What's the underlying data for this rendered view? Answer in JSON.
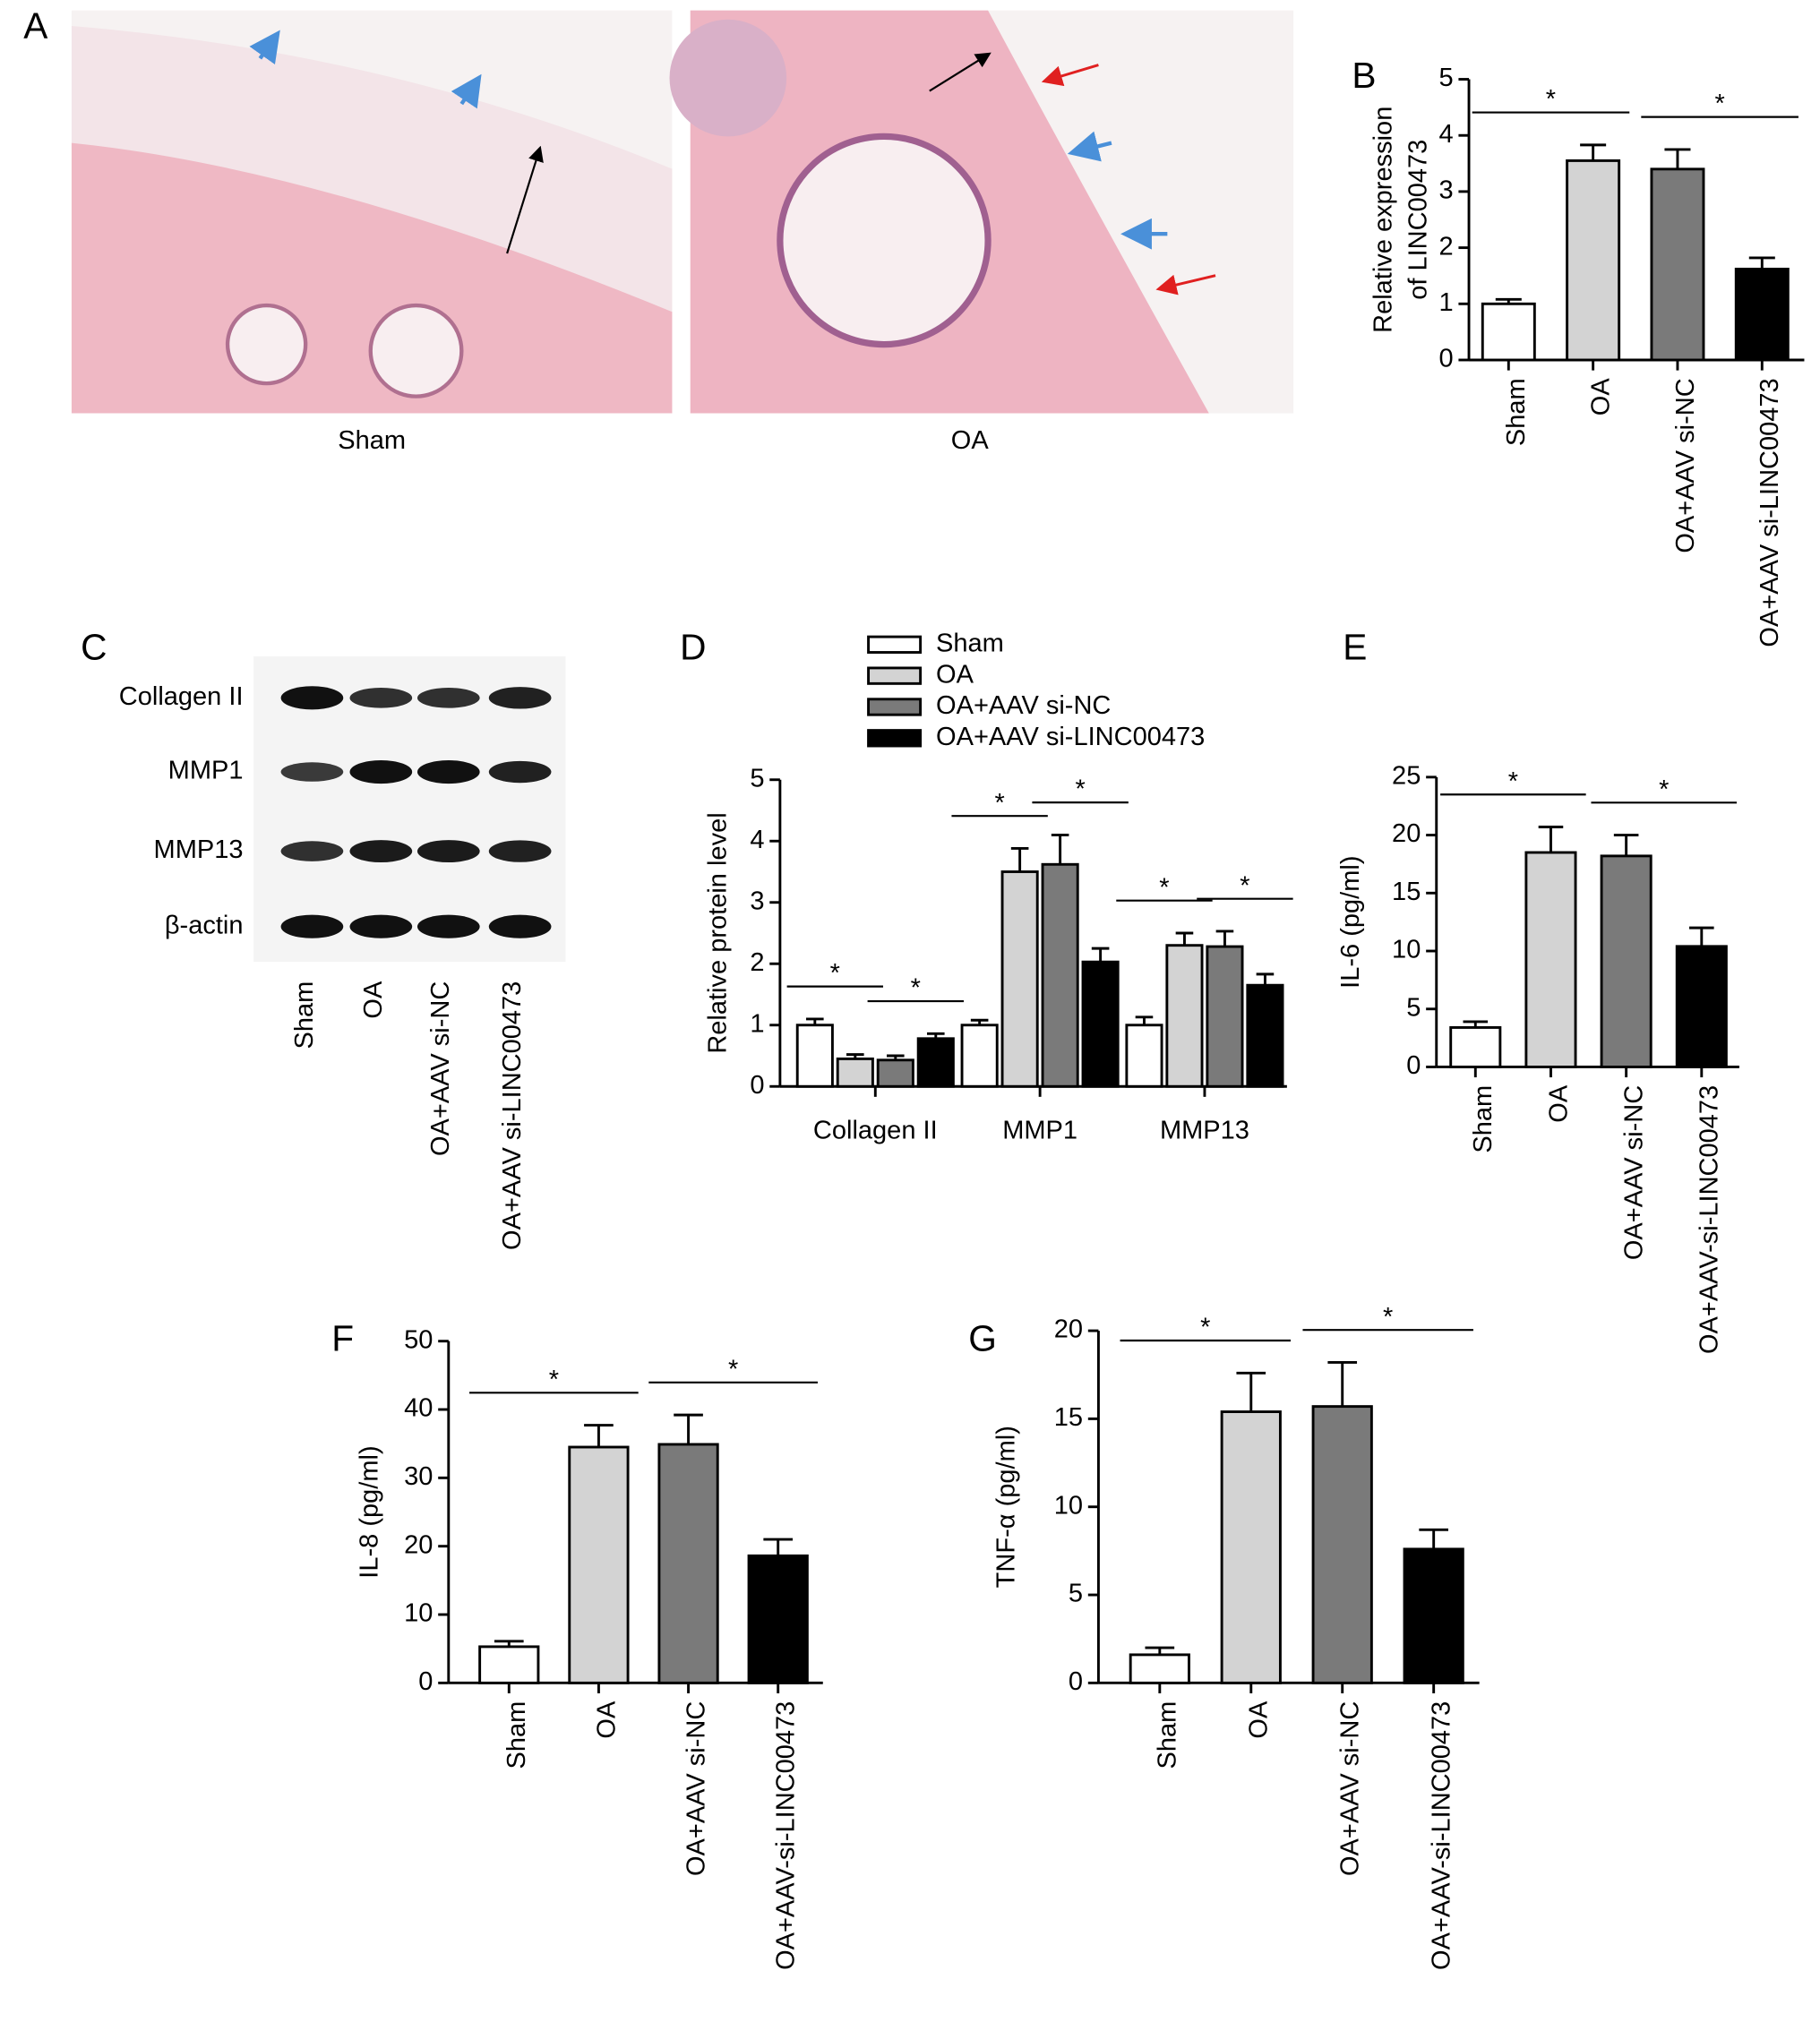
{
  "panel_a": {
    "panel": "A",
    "images": [
      "Sham",
      "OA"
    ]
  },
  "panel_c": {
    "panel": "C",
    "rows": [
      "Collagen II",
      "MMP1",
      "MMP13",
      "β-actin"
    ],
    "lanes": [
      "Sham",
      "OA",
      "OA+AAV si-NC",
      "OA+AAV si-LINC00473"
    ]
  },
  "chart_data": [
    {
      "type": "bar",
      "panel": "B",
      "ylabel": [
        "Relative expression",
        "of LINC00473"
      ],
      "categories": [
        "Sham",
        "OA",
        "OA+AAV si-NC",
        "OA+AAV si-LINC00473"
      ],
      "values": [
        1.0,
        3.55,
        3.4,
        1.62
      ],
      "errors": [
        0.08,
        0.28,
        0.35,
        0.2
      ],
      "colors": [
        "#ffffff",
        "#d3d3d3",
        "#7a7a7a",
        "#000000"
      ],
      "ylim": [
        0,
        5
      ],
      "yticks": [
        0,
        1,
        2,
        3,
        4,
        5
      ],
      "significance": [
        {
          "label": "*",
          "pair": [
            "Sham",
            "OA"
          ]
        },
        {
          "label": "*",
          "pair": [
            "OA+AAV si-NC",
            "OA+AAV si-LINC00473"
          ]
        }
      ]
    },
    {
      "type": "grouped-bar",
      "panel": "D",
      "ylabel": [
        "Relative protein level"
      ],
      "categories": [
        "Collagen II",
        "MMP1",
        "MMP13"
      ],
      "series": [
        {
          "name": "Sham",
          "color": "#ffffff",
          "values": [
            1.0,
            1.0,
            1.0
          ],
          "errors": [
            0.1,
            0.08,
            0.13
          ]
        },
        {
          "name": "OA",
          "color": "#d3d3d3",
          "values": [
            0.45,
            3.5,
            2.3
          ],
          "errors": [
            0.07,
            0.38,
            0.2
          ]
        },
        {
          "name": "OA+AAV si-NC",
          "color": "#7a7a7a",
          "values": [
            0.43,
            3.62,
            2.28
          ],
          "errors": [
            0.07,
            0.48,
            0.25
          ]
        },
        {
          "name": "OA+AAV si-LINC00473",
          "color": "#000000",
          "values": [
            0.78,
            2.03,
            1.65
          ],
          "errors": [
            0.08,
            0.22,
            0.18
          ]
        }
      ],
      "ylim": [
        0,
        5
      ],
      "yticks": [
        0,
        1,
        2,
        3,
        4,
        5
      ],
      "significance": [
        {
          "label": "*",
          "category": "Collagen II",
          "pair": [
            "Sham",
            "OA"
          ]
        },
        {
          "label": "*",
          "category": "Collagen II",
          "pair": [
            "OA+AAV si-NC",
            "OA+AAV si-LINC00473"
          ]
        },
        {
          "label": "*",
          "category": "MMP1",
          "pair": [
            "Sham",
            "OA"
          ]
        },
        {
          "label": "*",
          "category": "MMP1",
          "pair": [
            "OA+AAV si-NC",
            "OA+AAV si-LINC00473"
          ]
        },
        {
          "label": "*",
          "category": "MMP13",
          "pair": [
            "Sham",
            "OA"
          ]
        },
        {
          "label": "*",
          "category": "MMP13",
          "pair": [
            "OA+AAV si-NC",
            "OA+AAV si-LINC00473"
          ]
        }
      ]
    },
    {
      "type": "bar",
      "panel": "E",
      "ylabel": [
        "IL-6 (pg/ml)"
      ],
      "categories": [
        "Sham",
        "OA",
        "OA+AAV si-NC",
        "OA+AAV-si-LINC00473"
      ],
      "values": [
        3.4,
        18.5,
        18.2,
        10.4
      ],
      "errors": [
        0.5,
        2.2,
        1.8,
        1.6
      ],
      "colors": [
        "#ffffff",
        "#d3d3d3",
        "#7a7a7a",
        "#000000"
      ],
      "ylim": [
        0,
        25
      ],
      "yticks": [
        0,
        5,
        10,
        15,
        20,
        25
      ],
      "significance": [
        {
          "label": "*",
          "pair": [
            "Sham",
            "OA"
          ]
        },
        {
          "label": "*",
          "pair": [
            "OA+AAV si-NC",
            "OA+AAV-si-LINC00473"
          ]
        }
      ]
    },
    {
      "type": "bar",
      "panel": "F",
      "ylabel": [
        "IL-8 (pg/ml)"
      ],
      "categories": [
        "Sham",
        "OA",
        "OA+AAV si-NC",
        "OA+AAV-si-LINC00473"
      ],
      "values": [
        5.3,
        34.5,
        34.9,
        18.6
      ],
      "errors": [
        0.8,
        3.2,
        4.3,
        2.4
      ],
      "colors": [
        "#ffffff",
        "#d3d3d3",
        "#7a7a7a",
        "#000000"
      ],
      "ylim": [
        0,
        50
      ],
      "yticks": [
        0,
        10,
        20,
        30,
        40,
        50
      ],
      "significance": [
        {
          "label": "*",
          "pair": [
            "Sham",
            "OA"
          ]
        },
        {
          "label": "*",
          "pair": [
            "OA+AAV si-NC",
            "OA+AAV-si-LINC00473"
          ]
        }
      ]
    },
    {
      "type": "bar",
      "panel": "G",
      "ylabel": [
        "TNF-α (pg/ml)"
      ],
      "categories": [
        "Sham",
        "OA",
        "OA+AAV si-NC",
        "OA+AAV-si-LINC00473"
      ],
      "values": [
        1.6,
        15.4,
        15.7,
        7.6
      ],
      "errors": [
        0.4,
        2.2,
        2.5,
        1.1
      ],
      "colors": [
        "#ffffff",
        "#d3d3d3",
        "#7a7a7a",
        "#000000"
      ],
      "ylim": [
        0,
        20
      ],
      "yticks": [
        0,
        5,
        10,
        15,
        20
      ],
      "significance": [
        {
          "label": "*",
          "pair": [
            "Sham",
            "OA"
          ]
        },
        {
          "label": "*",
          "pair": [
            "OA+AAV si-NC",
            "OA+AAV-si-LINC00473"
          ]
        }
      ]
    }
  ]
}
